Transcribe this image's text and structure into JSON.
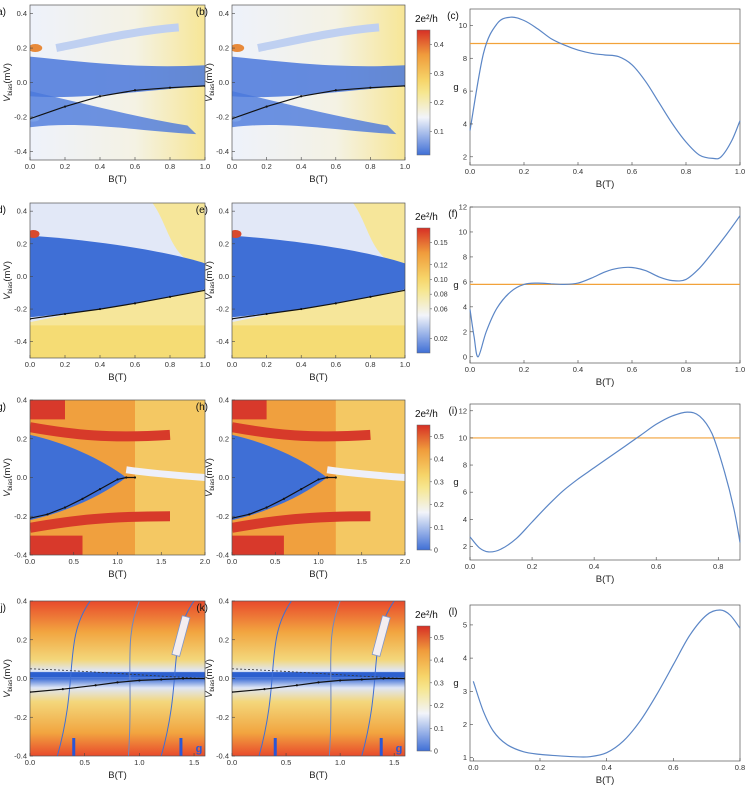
{
  "chart_data": [
    {
      "row": 0,
      "panel": "map",
      "id": "(a)",
      "type": "heatmap",
      "xlabel": "B(T)",
      "ylabel_main": "V",
      "ylabel_sub": "bias",
      "ylabel_unit": "(mV)",
      "xlim": [
        0,
        1
      ],
      "ylim": [
        -0.45,
        0.45
      ],
      "xticks": [
        "0.0",
        "0.2",
        "0.4",
        "0.6",
        "0.8",
        "1.0"
      ],
      "yticks": [
        "-0.4",
        "-0.2",
        "0.0",
        "0.2",
        "0.4"
      ],
      "style": "s1",
      "curve_x": [
        0,
        0.2,
        0.4,
        0.6,
        0.8,
        1.0
      ],
      "curve_y": [
        -0.21,
        -0.14,
        -0.08,
        -0.045,
        -0.03,
        -0.02
      ]
    },
    {
      "row": 0,
      "panel": "map",
      "id": "(b)",
      "type": "heatmap",
      "xlabel": "B(T)",
      "ylabel_main": "V",
      "ylabel_sub": "bias",
      "ylabel_unit": "(mV)",
      "xlim": [
        0,
        1
      ],
      "ylim": [
        -0.45,
        0.45
      ],
      "xticks": [
        "0.0",
        "0.2",
        "0.4",
        "0.6",
        "0.8",
        "1.0"
      ],
      "yticks": [
        "-0.4",
        "-0.2",
        "0.0",
        "0.2",
        "0.4"
      ],
      "style": "s1",
      "curve_x": [
        0,
        0.2,
        0.4,
        0.6,
        0.8,
        1.0
      ],
      "curve_y": [
        -0.21,
        -0.14,
        -0.08,
        -0.045,
        -0.03,
        -0.02
      ]
    },
    {
      "row": 0,
      "panel": "colorbar",
      "title": "2e²/h",
      "ticks": [
        "0.4",
        "0.3",
        "0.2",
        "0.1"
      ],
      "tick_values": [
        0.4,
        0.3,
        0.2,
        0.1
      ],
      "range": [
        0.02,
        0.45
      ]
    },
    {
      "row": 0,
      "panel": "line",
      "id": "(c)",
      "type": "line",
      "xlabel": "B(T)",
      "ylabel": "g",
      "xlim": [
        0,
        1
      ],
      "ylim": [
        1.5,
        11
      ],
      "xticks": [
        "0.0",
        "0.2",
        "0.4",
        "0.6",
        "0.8",
        "1.0"
      ],
      "yticks": [
        "2",
        "4",
        "6",
        "8",
        "10"
      ],
      "ref_y": 8.9,
      "x": [
        0,
        0.05,
        0.1,
        0.15,
        0.2,
        0.25,
        0.3,
        0.35,
        0.4,
        0.45,
        0.5,
        0.55,
        0.6,
        0.65,
        0.7,
        0.75,
        0.8,
        0.85,
        0.9,
        0.93,
        0.97,
        1.0
      ],
      "y": [
        3.6,
        8.3,
        10.1,
        10.5,
        10.3,
        9.8,
        9.2,
        8.8,
        8.5,
        8.3,
        8.2,
        8.1,
        7.6,
        6.6,
        5.3,
        4.0,
        2.9,
        2.1,
        1.9,
        2.0,
        3.0,
        4.2
      ]
    },
    {
      "row": 1,
      "panel": "map",
      "id": "(d)",
      "type": "heatmap",
      "xlabel": "B(T)",
      "ylabel_main": "V",
      "ylabel_sub": "bias",
      "ylabel_unit": "(mV)",
      "xlim": [
        0,
        1
      ],
      "ylim": [
        -0.5,
        0.45
      ],
      "xticks": [
        "0.0",
        "0.2",
        "0.4",
        "0.6",
        "0.8",
        "1.0"
      ],
      "yticks": [
        "-0.4",
        "-0.2",
        "0.0",
        "0.2",
        "0.4"
      ],
      "style": "s2",
      "curve_x": [
        0,
        0.2,
        0.4,
        0.6,
        0.8,
        1.0
      ],
      "curve_y": [
        -0.26,
        -0.23,
        -0.2,
        -0.165,
        -0.125,
        -0.085
      ]
    },
    {
      "row": 1,
      "panel": "map",
      "id": "(e)",
      "type": "heatmap",
      "xlabel": "B(T)",
      "ylabel_main": "V",
      "ylabel_sub": "bias",
      "ylabel_unit": "(mV)",
      "xlim": [
        0,
        1
      ],
      "ylim": [
        -0.5,
        0.45
      ],
      "xticks": [
        "0.0",
        "0.2",
        "0.4",
        "0.6",
        "0.8",
        "1.0"
      ],
      "yticks": [
        "-0.4",
        "-0.2",
        "0.0",
        "0.2",
        "0.4"
      ],
      "style": "s2",
      "curve_x": [
        0,
        0.2,
        0.4,
        0.6,
        0.8,
        1.0
      ],
      "curve_y": [
        -0.26,
        -0.23,
        -0.2,
        -0.165,
        -0.125,
        -0.085
      ]
    },
    {
      "row": 1,
      "panel": "colorbar",
      "title": "2e²/h",
      "ticks": [
        "0.15",
        "0.12",
        "0.10",
        "0.08",
        "0.06",
        "0.02"
      ],
      "tick_values": [
        0.15,
        0.12,
        0.1,
        0.08,
        0.06,
        0.02
      ],
      "range": [
        0.0,
        0.17
      ]
    },
    {
      "row": 1,
      "panel": "line",
      "id": "(f)",
      "type": "line",
      "xlabel": "B(T)",
      "ylabel": "g",
      "xlim": [
        0,
        1
      ],
      "ylim": [
        -0.5,
        12
      ],
      "xticks": [
        "0.0",
        "0.2",
        "0.4",
        "0.6",
        "0.8",
        "1.0"
      ],
      "yticks": [
        "0",
        "2",
        "4",
        "6",
        "8",
        "10",
        "12"
      ],
      "ref_y": 5.8,
      "x": [
        0,
        0.015,
        0.03,
        0.06,
        0.1,
        0.15,
        0.2,
        0.25,
        0.3,
        0.35,
        0.4,
        0.45,
        0.5,
        0.55,
        0.6,
        0.65,
        0.7,
        0.75,
        0.8,
        0.85,
        0.9,
        0.95,
        1.0
      ],
      "y": [
        3.8,
        1.6,
        0.0,
        2.0,
        3.9,
        5.2,
        5.8,
        5.9,
        5.85,
        5.8,
        5.9,
        6.3,
        6.8,
        7.1,
        7.15,
        6.9,
        6.4,
        6.1,
        6.2,
        7.1,
        8.4,
        9.8,
        11.3
      ]
    },
    {
      "row": 2,
      "panel": "map",
      "id": "(g)",
      "type": "heatmap",
      "xlabel": "B(T)",
      "ylabel_main": "V",
      "ylabel_sub": "bias",
      "ylabel_unit": "(mV)",
      "xlim": [
        0,
        2
      ],
      "ylim": [
        -0.4,
        0.4
      ],
      "xticks": [
        "0.0",
        "0.5",
        "1.0",
        "1.5",
        "2.0"
      ],
      "yticks": [
        "-0.4",
        "-0.2",
        "0.0",
        "0.2",
        "0.4"
      ],
      "style": "s3",
      "curve_x": [
        0,
        0.2,
        0.4,
        0.6,
        0.8,
        1.0,
        1.1,
        1.2
      ],
      "curve_y": [
        -0.21,
        -0.19,
        -0.155,
        -0.11,
        -0.06,
        -0.01,
        0.0,
        0.0
      ]
    },
    {
      "row": 2,
      "panel": "map",
      "id": "(h)",
      "type": "heatmap",
      "xlabel": "B(T)",
      "ylabel_main": "V",
      "ylabel_sub": "bias",
      "ylabel_unit": "(mV)",
      "xlim": [
        0,
        2
      ],
      "ylim": [
        -0.4,
        0.4
      ],
      "xticks": [
        "0.0",
        "0.5",
        "1.0",
        "1.5",
        "2.0"
      ],
      "yticks": [
        "-0.4",
        "-0.2",
        "0.0",
        "0.2",
        "0.4"
      ],
      "style": "s3",
      "curve_x": [
        0,
        0.2,
        0.4,
        0.6,
        0.8,
        1.0,
        1.1,
        1.2
      ],
      "curve_y": [
        -0.21,
        -0.19,
        -0.155,
        -0.11,
        -0.06,
        -0.01,
        0.0,
        0.0
      ]
    },
    {
      "row": 2,
      "panel": "colorbar",
      "title": "2e²/h",
      "ticks": [
        "0.5",
        "0.4",
        "0.3",
        "0.2",
        "0.1",
        "0"
      ],
      "tick_values": [
        0.5,
        0.4,
        0.3,
        0.2,
        0.1,
        0
      ],
      "range": [
        0,
        0.55
      ]
    },
    {
      "row": 2,
      "panel": "line",
      "id": "(i)",
      "type": "line",
      "xlabel": "B(T)",
      "ylabel": "g",
      "xlim": [
        0,
        0.87
      ],
      "ylim": [
        1,
        12.5
      ],
      "xticks": [
        "0.0",
        "0.2",
        "0.4",
        "0.6",
        "0.8"
      ],
      "yticks": [
        "2",
        "4",
        "6",
        "8",
        "10",
        "12"
      ],
      "ref_y": 10.0,
      "x": [
        0,
        0.03,
        0.06,
        0.1,
        0.15,
        0.2,
        0.25,
        0.3,
        0.35,
        0.4,
        0.45,
        0.5,
        0.55,
        0.6,
        0.65,
        0.7,
        0.74,
        0.78,
        0.82,
        0.85,
        0.87
      ],
      "y": [
        2.7,
        1.9,
        1.6,
        1.8,
        2.6,
        3.8,
        5.0,
        6.1,
        7.0,
        7.8,
        8.6,
        9.4,
        10.2,
        11.0,
        11.6,
        11.9,
        11.6,
        10.3,
        7.5,
        4.8,
        2.3
      ]
    },
    {
      "row": 3,
      "panel": "map",
      "id": "(j)",
      "type": "heatmap",
      "xlabel": "B(T)",
      "ylabel_main": "V",
      "ylabel_sub": "bias",
      "ylabel_unit": "(mV)",
      "xlim": [
        0,
        1.6
      ],
      "ylim": [
        -0.4,
        0.4
      ],
      "xticks": [
        "0.0",
        "0.5",
        "1.0",
        "1.5"
      ],
      "yticks": [
        "-0.4",
        "-0.2",
        "0.0",
        "0.2",
        "0.4"
      ],
      "style": "s4",
      "curve_x": [
        0,
        0.3,
        0.6,
        0.8,
        1.0,
        1.2,
        1.4,
        1.6
      ],
      "curve_y": [
        -0.07,
        -0.055,
        -0.035,
        -0.02,
        -0.01,
        -0.005,
        0.0,
        0.0
      ],
      "mark_b": [
        0.4,
        1.38
      ],
      "corner_text": "g"
    },
    {
      "row": 3,
      "panel": "map",
      "id": "(k)",
      "type": "heatmap",
      "xlabel": "B(T)",
      "ylabel_main": "V",
      "ylabel_sub": "bias",
      "ylabel_unit": "(mV)",
      "xlim": [
        0,
        1.6
      ],
      "ylim": [
        -0.4,
        0.4
      ],
      "xticks": [
        "0.0",
        "0.5",
        "1.0",
        "1.5"
      ],
      "yticks": [
        "-0.4",
        "-0.2",
        "0.0",
        "0.2",
        "0.4"
      ],
      "style": "s4",
      "curve_x": [
        0,
        0.3,
        0.6,
        0.8,
        1.0,
        1.2,
        1.4,
        1.6
      ],
      "curve_y": [
        -0.07,
        -0.055,
        -0.035,
        -0.02,
        -0.01,
        -0.005,
        0.0,
        0.0
      ],
      "mark_b": [
        0.4,
        1.38
      ],
      "corner_text": "g"
    },
    {
      "row": 3,
      "panel": "colorbar",
      "title": "2e²/h",
      "ticks": [
        "0.5",
        "0.4",
        "0.3",
        "0.2",
        "0.1",
        "0"
      ],
      "tick_values": [
        0.5,
        0.4,
        0.3,
        0.2,
        0.1,
        0
      ],
      "range": [
        0,
        0.55
      ]
    },
    {
      "row": 3,
      "panel": "line",
      "id": "(l)",
      "type": "line",
      "xlabel": "B(T)",
      "ylabel": "g",
      "xlim": [
        -0.01,
        0.8
      ],
      "ylim": [
        0.9,
        5.6
      ],
      "xticks": [
        "0.0",
        "0.2",
        "0.4",
        "0.6",
        "0.8"
      ],
      "yticks": [
        "1",
        "2",
        "3",
        "4",
        "5"
      ],
      "ref_y": null,
      "x": [
        0,
        0.03,
        0.06,
        0.1,
        0.15,
        0.2,
        0.25,
        0.3,
        0.35,
        0.4,
        0.45,
        0.5,
        0.55,
        0.6,
        0.65,
        0.7,
        0.74,
        0.77,
        0.8
      ],
      "y": [
        3.3,
        2.4,
        1.8,
        1.4,
        1.18,
        1.1,
        1.06,
        1.03,
        1.03,
        1.15,
        1.5,
        2.1,
        2.9,
        3.8,
        4.7,
        5.3,
        5.45,
        5.3,
        4.9
      ]
    }
  ],
  "colors": {
    "blue": "#3f6fd6",
    "red": "#d62f25",
    "orange_ref": "#f2a23a",
    "line": "#5b86c6"
  }
}
